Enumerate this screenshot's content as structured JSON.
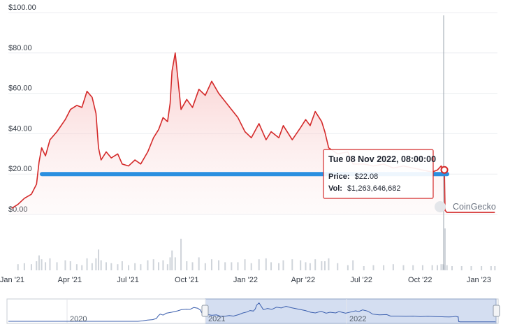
{
  "chart_data": {
    "type": "area",
    "source": "CoinGecko",
    "y_ticks": [
      "$100.00",
      "$80.00",
      "$60.00",
      "$40.00",
      "$20.00",
      "$0.00"
    ],
    "ylim": [
      0,
      100
    ],
    "x_ticks": [
      "Jan '21",
      "Apr '21",
      "Jul '21",
      "Oct '21",
      "Jan '22",
      "Apr '22",
      "Jul '22",
      "Oct '22",
      "Jan '23"
    ],
    "navigator_labels": [
      "2020",
      "2021",
      "2022"
    ],
    "series": [
      {
        "values_desc": "price",
        "color": "#d42a2a",
        "x": [
          "2020-12-31",
          "2021-01-10",
          "2021-01-20",
          "2021-01-31",
          "2021-02-08",
          "2021-02-12",
          "2021-02-16",
          "2021-02-22",
          "2021-03-01",
          "2021-03-12",
          "2021-03-25",
          "2021-04-02",
          "2021-04-12",
          "2021-04-20",
          "2021-04-28",
          "2021-05-06",
          "2021-05-12",
          "2021-05-16",
          "2021-05-20",
          "2021-05-28",
          "2021-06-05",
          "2021-06-15",
          "2021-06-22",
          "2021-07-02",
          "2021-07-12",
          "2021-07-21",
          "2021-08-01",
          "2021-08-10",
          "2021-08-18",
          "2021-08-25",
          "2021-09-01",
          "2021-09-05",
          "2021-09-08",
          "2021-09-13",
          "2021-09-22",
          "2021-10-01",
          "2021-10-10",
          "2021-10-20",
          "2021-10-30",
          "2021-11-09",
          "2021-11-20",
          "2021-11-30",
          "2021-12-10",
          "2021-12-20",
          "2021-12-31",
          "2022-01-10",
          "2022-01-22",
          "2022-02-02",
          "2022-02-10",
          "2022-02-22",
          "2022-03-01",
          "2022-03-15",
          "2022-03-28",
          "2022-04-05",
          "2022-04-12",
          "2022-04-20",
          "2022-04-30",
          "2022-05-05",
          "2022-05-11",
          "2022-05-25",
          "2022-06-10",
          "2022-06-18",
          "2022-07-05",
          "2022-07-20",
          "2022-08-05",
          "2022-08-20",
          "2022-09-05",
          "2022-09-20",
          "2022-10-05",
          "2022-10-20",
          "2022-10-28",
          "2022-11-03",
          "2022-11-06",
          "2022-11-07",
          "2022-11-08",
          "2022-11-09",
          "2022-11-12",
          "2022-11-20",
          "2022-12-05",
          "2022-12-20",
          "2023-01-05",
          "2023-01-20",
          "2023-01-26"
        ],
        "y": [
          3,
          5,
          8,
          10,
          15,
          26,
          33,
          29,
          37,
          41,
          47,
          52,
          54,
          53,
          61,
          58,
          50,
          33,
          27,
          31,
          28,
          30,
          25,
          24,
          27,
          25,
          31,
          38,
          42,
          48,
          46,
          55,
          71,
          80,
          52,
          57,
          53,
          62,
          59,
          66,
          60,
          56,
          52,
          48,
          41,
          38,
          45,
          37,
          41,
          38,
          44,
          37,
          43,
          47,
          44,
          51,
          46,
          41,
          33,
          30,
          31,
          25,
          25,
          24,
          25,
          23,
          24,
          23,
          22,
          21,
          22,
          24,
          22,
          21,
          22,
          2,
          1,
          1,
          1,
          1,
          1,
          1,
          1
        ]
      }
    ],
    "reference_line": {
      "value": 20,
      "color": "#2b8fe0"
    },
    "volume_spikes_desc": "volume",
    "tooltip": {
      "date": "Tue 08 Nov 2022, 08:00:00",
      "price_label": "Price:",
      "price_value": "$22.08",
      "vol_label": "Vol:",
      "vol_value": "$1,263,646,682"
    },
    "watermark": "CoinGecko"
  }
}
